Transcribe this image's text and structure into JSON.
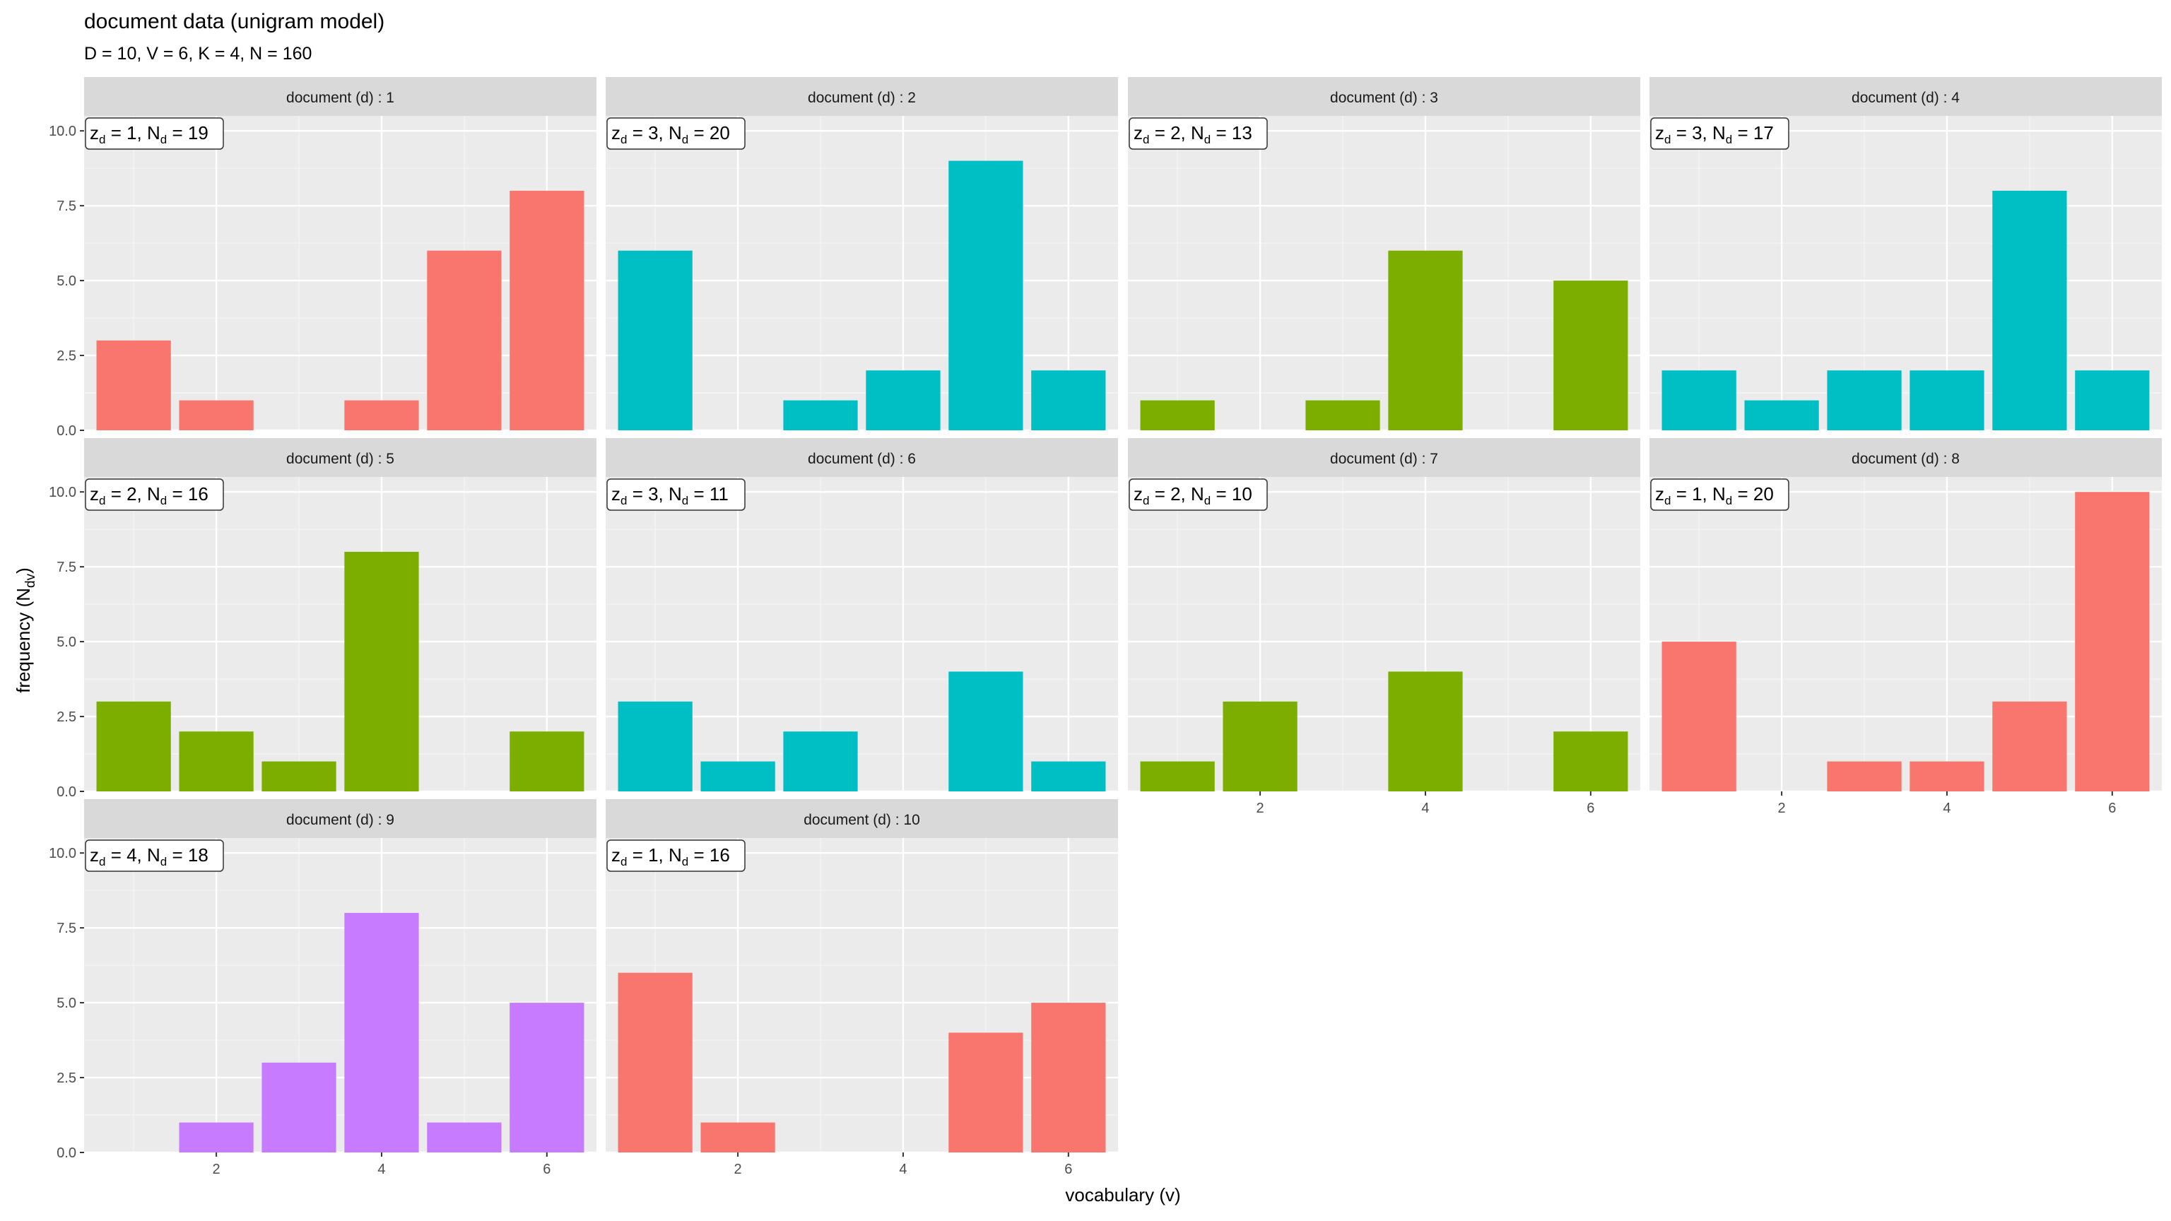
{
  "chart_data": {
    "type": "bar",
    "title": "document data (unigram model)",
    "subtitle": "D = 10, V = 6, K = 4, N = 160",
    "xlabel": "vocabulary (v)",
    "ylabel": "frequency (N",
    "ylabel_sub": "dv",
    "ylabel_close": ")",
    "x_ticks": [
      2,
      4,
      6
    ],
    "y_ticks": [
      "0.0",
      "2.5",
      "5.0",
      "7.5",
      "10.0"
    ],
    "ylim": [
      0,
      10.5
    ],
    "xlim": [
      0.4,
      6.6
    ],
    "strip_prefix": "document (d) : ",
    "topic_colors": {
      "1": "#F8766D",
      "2": "#7CAE00",
      "3": "#00BFC4",
      "4": "#C77CFF"
    },
    "grid": "on",
    "panels": [
      {
        "document": "1",
        "z": "1",
        "N": "19",
        "values": [
          3,
          1,
          0,
          1,
          6,
          8
        ]
      },
      {
        "document": "2",
        "z": "3",
        "N": "20",
        "values": [
          6,
          0,
          1,
          2,
          9,
          2
        ]
      },
      {
        "document": "3",
        "z": "2",
        "N": "13",
        "values": [
          1,
          0,
          1,
          6,
          0,
          5
        ]
      },
      {
        "document": "4",
        "z": "3",
        "N": "17",
        "values": [
          2,
          1,
          2,
          2,
          8,
          2
        ]
      },
      {
        "document": "5",
        "z": "2",
        "N": "16",
        "values": [
          3,
          2,
          1,
          8,
          0,
          2
        ]
      },
      {
        "document": "6",
        "z": "3",
        "N": "11",
        "values": [
          3,
          1,
          2,
          0,
          4,
          1
        ]
      },
      {
        "document": "7",
        "z": "2",
        "N": "10",
        "values": [
          1,
          3,
          0,
          4,
          0,
          2
        ]
      },
      {
        "document": "8",
        "z": "1",
        "N": "20",
        "values": [
          5,
          0,
          1,
          1,
          3,
          10
        ]
      },
      {
        "document": "9",
        "z": "4",
        "N": "18",
        "values": [
          0,
          1,
          3,
          8,
          1,
          5
        ]
      },
      {
        "document": "10",
        "z": "1",
        "N": "16",
        "values": [
          6,
          1,
          0,
          0,
          4,
          5
        ]
      }
    ]
  }
}
